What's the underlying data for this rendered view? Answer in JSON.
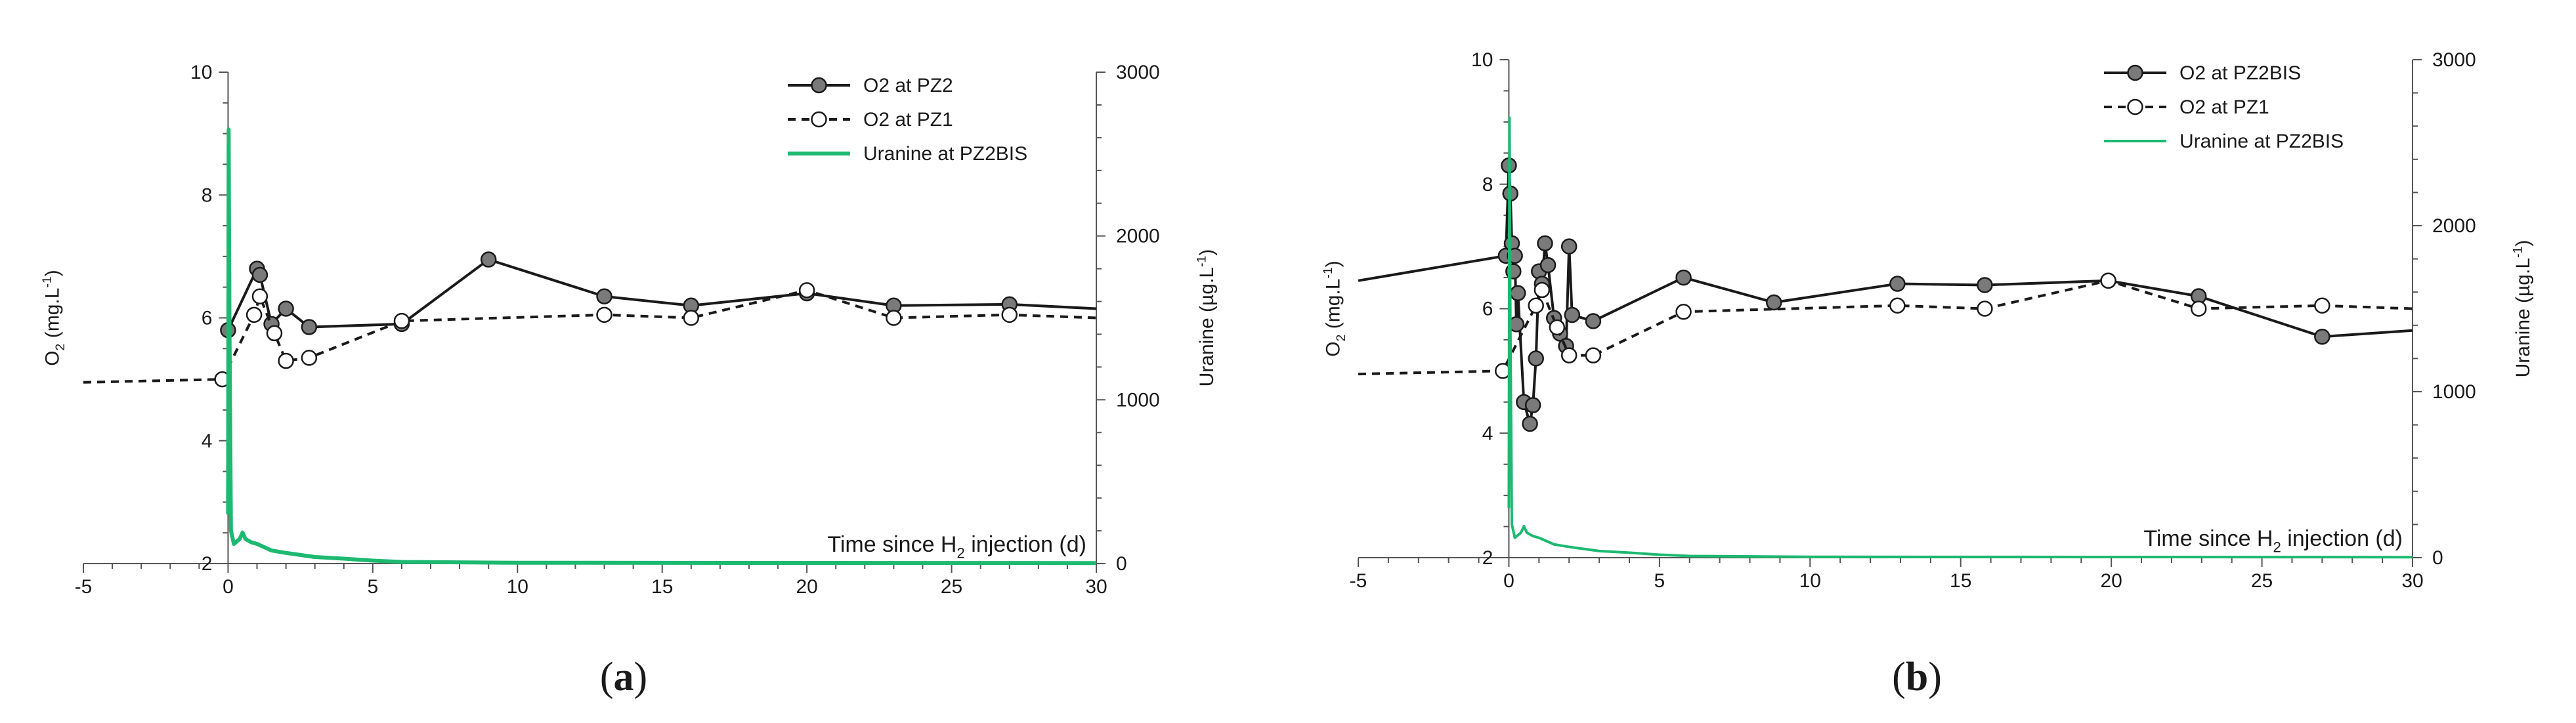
{
  "chart_data": [
    {
      "type": "line",
      "panel_label": "a",
      "xlabel": "Time since H2 injection (d)",
      "xlim": [
        -5,
        30
      ],
      "x_ticks": [
        -5,
        0,
        5,
        10,
        15,
        20,
        25,
        30
      ],
      "ylabel_left": "O2 (mg.L-1)",
      "ylim_left": [
        2,
        10
      ],
      "y_ticks_left": [
        2,
        4,
        6,
        8,
        10
      ],
      "ylabel_right": "Uranine (µg.L-1)",
      "ylim_right": [
        0,
        3000
      ],
      "y_ticks_right": [
        0,
        1000,
        2000,
        3000
      ],
      "legend_position": "top-right",
      "series": [
        {
          "name": "O2 at PZ2",
          "axis": "left",
          "style": "solid-filled-markers",
          "color": "#1a1a1a",
          "marker_fill": "#7a7a7a",
          "x": [
            0,
            1,
            1.1,
            1.5,
            2,
            2.8,
            6,
            9,
            13,
            16,
            20,
            23,
            27,
            30
          ],
          "y": [
            5.8,
            6.8,
            6.7,
            5.9,
            6.15,
            5.85,
            5.9,
            6.95,
            6.35,
            6.2,
            6.4,
            6.2,
            6.22,
            6.15
          ]
        },
        {
          "name": "O2 at PZ1",
          "axis": "left",
          "style": "dashed-open-markers",
          "color": "#1a1a1a",
          "marker_fill": "#ffffff",
          "x": [
            -5,
            -0.2,
            0.9,
            1.1,
            1.6,
            2,
            2.8,
            6,
            13,
            16,
            20,
            23,
            27,
            30
          ],
          "y": [
            4.95,
            5.0,
            6.05,
            6.35,
            5.75,
            5.3,
            5.35,
            5.95,
            6.05,
            6.0,
            6.45,
            6.0,
            6.05,
            6.0
          ]
        },
        {
          "name": "Uranine at PZ2BIS",
          "axis": "right",
          "style": "line-thick",
          "color": "#1db971",
          "x": [
            0,
            0.02,
            0.05,
            0.1,
            0.2,
            0.4,
            0.5,
            0.6,
            0.8,
            1.0,
            1.5,
            2,
            3,
            4,
            5,
            6,
            10,
            30
          ],
          "y": [
            300,
            2650,
            1400,
            200,
            120,
            150,
            190,
            150,
            130,
            120,
            80,
            65,
            40,
            30,
            18,
            10,
            5,
            3
          ]
        }
      ]
    },
    {
      "type": "line",
      "panel_label": "b",
      "xlabel": "Time since H2 injection (d)",
      "xlim": [
        -5,
        30
      ],
      "x_ticks": [
        -5,
        0,
        5,
        10,
        15,
        20,
        25,
        30
      ],
      "ylabel_left": "O2 (mg.L-1)",
      "ylim_left": [
        2,
        10
      ],
      "y_ticks_left": [
        2,
        4,
        6,
        8,
        10
      ],
      "ylabel_right": "Uranine (µg.L-1)",
      "ylim_right": [
        0,
        3000
      ],
      "y_ticks_right": [
        0,
        1000,
        2000,
        3000
      ],
      "legend_position": "top-right",
      "series": [
        {
          "name": "O2 at PZ2BIS",
          "axis": "left",
          "style": "solid-filled-markers",
          "color": "#1a1a1a",
          "marker_fill": "#7a7a7a",
          "x": [
            -5,
            -0.1,
            0,
            0.05,
            0.1,
            0.15,
            0.2,
            0.25,
            0.3,
            0.5,
            0.7,
            0.8,
            0.9,
            1.0,
            1.1,
            1.2,
            1.3,
            1.5,
            1.7,
            1.9,
            2.0,
            2.1,
            2.8,
            5.8,
            8.8,
            12.9,
            15.8,
            19.9,
            22.9,
            27.0,
            30
          ],
          "y": [
            6.45,
            6.85,
            8.3,
            7.85,
            7.05,
            6.6,
            6.85,
            5.75,
            6.25,
            4.5,
            4.15,
            4.45,
            5.2,
            6.6,
            6.4,
            7.05,
            6.7,
            5.85,
            5.6,
            5.4,
            7.0,
            5.9,
            5.8,
            6.5,
            6.1,
            6.4,
            6.38,
            6.45,
            6.2,
            5.55,
            5.65
          ]
        },
        {
          "name": "O2 at PZ1",
          "axis": "left",
          "style": "dashed-open-markers",
          "color": "#1a1a1a",
          "marker_fill": "#ffffff",
          "x": [
            -5,
            -0.2,
            0.9,
            1.1,
            1.6,
            2,
            2.8,
            5.8,
            12.9,
            15.8,
            19.9,
            22.9,
            27.0,
            30
          ],
          "y": [
            4.95,
            5.0,
            6.05,
            6.3,
            5.7,
            5.25,
            5.25,
            5.95,
            6.05,
            6.0,
            6.45,
            6.0,
            6.05,
            6.0
          ]
        },
        {
          "name": "Uranine at PZ2BIS",
          "axis": "right",
          "style": "line-thin",
          "color": "#1db971",
          "x": [
            0,
            0.02,
            0.05,
            0.1,
            0.2,
            0.4,
            0.5,
            0.6,
            0.8,
            1.0,
            1.5,
            2,
            3,
            4,
            5,
            6,
            10,
            30
          ],
          "y": [
            300,
            2650,
            1400,
            200,
            120,
            150,
            190,
            150,
            130,
            120,
            80,
            65,
            40,
            30,
            18,
            10,
            5,
            3
          ]
        }
      ]
    }
  ]
}
